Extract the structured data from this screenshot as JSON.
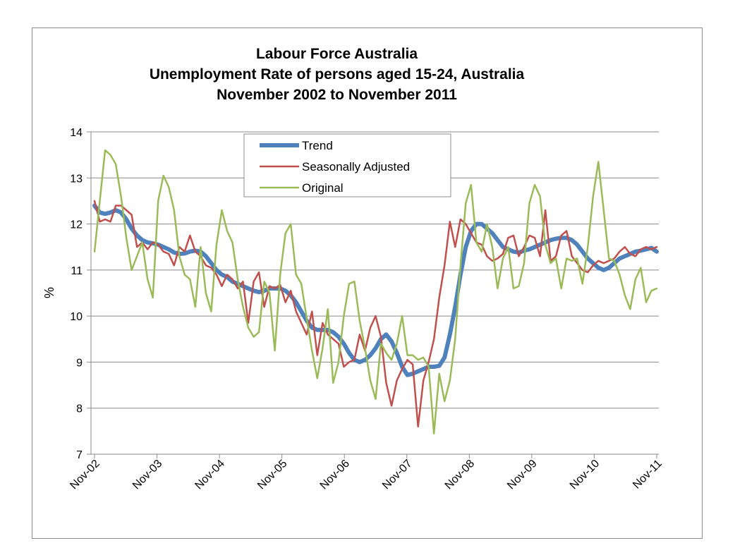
{
  "chart_data": {
    "type": "line",
    "title_lines": [
      "Labour Force Australia",
      "Unemployment Rate of persons  aged 15-24,  Australia",
      "November 2002 to November 2011"
    ],
    "xlabel": "",
    "ylabel": "%",
    "ylim": [
      7,
      14
    ],
    "yticks": [
      7,
      8,
      9,
      10,
      11,
      12,
      13,
      14
    ],
    "x_tick_labels": [
      "Nov-02",
      "Nov-03",
      "Nov-04",
      "Nov-05",
      "Nov-06",
      "Nov-07",
      "Nov-08",
      "Nov-09",
      "Nov-10",
      "Nov-11"
    ],
    "x_start": "Nov-02",
    "x_end": "Nov-11",
    "grid": "horizontal",
    "legend_position": "top-center",
    "series": [
      {
        "name": "Trend",
        "color": "#4f81bd",
        "values": [
          12.4,
          12.25,
          12.22,
          12.25,
          12.3,
          12.25,
          12.1,
          11.9,
          11.75,
          11.65,
          11.6,
          11.58,
          11.55,
          11.5,
          11.45,
          11.38,
          11.35,
          11.36,
          11.4,
          11.42,
          11.4,
          11.3,
          11.15,
          11.0,
          10.9,
          10.85,
          10.75,
          10.7,
          10.65,
          10.6,
          10.55,
          10.52,
          10.55,
          10.6,
          10.6,
          10.6,
          10.55,
          10.45,
          10.3,
          10.1,
          9.9,
          9.75,
          9.7,
          9.7,
          9.7,
          9.65,
          9.55,
          9.4,
          9.2,
          9.05,
          9.0,
          9.05,
          9.15,
          9.3,
          9.5,
          9.6,
          9.45,
          9.2,
          8.9,
          8.72,
          8.75,
          8.8,
          8.85,
          8.9,
          8.9,
          8.92,
          9.1,
          9.6,
          10.2,
          10.9,
          11.5,
          11.85,
          12.0,
          12.0,
          11.9,
          11.8,
          11.65,
          11.5,
          11.45,
          11.4,
          11.38,
          11.42,
          11.45,
          11.5,
          11.55,
          11.6,
          11.65,
          11.68,
          11.7,
          11.7,
          11.65,
          11.55,
          11.4,
          11.25,
          11.15,
          11.05,
          11.0,
          11.05,
          11.15,
          11.25,
          11.3,
          11.35,
          11.4,
          11.42,
          11.45,
          11.48,
          11.4
        ]
      },
      {
        "name": "Seasonally Adjusted",
        "color": "#c0504d",
        "values": [
          12.5,
          12.05,
          12.1,
          12.05,
          12.4,
          12.4,
          12.3,
          12.2,
          11.5,
          11.6,
          11.45,
          11.6,
          11.55,
          11.4,
          11.35,
          11.1,
          11.5,
          11.4,
          11.75,
          11.4,
          11.3,
          11.1,
          11.05,
          10.9,
          10.65,
          10.9,
          10.8,
          10.6,
          10.75,
          9.85,
          10.75,
          10.95,
          10.2,
          10.65,
          10.6,
          10.68,
          10.3,
          10.55,
          10.1,
          9.85,
          9.6,
          10.1,
          9.15,
          9.85,
          9.6,
          9.5,
          9.4,
          8.9,
          9.0,
          9.05,
          9.6,
          9.25,
          9.75,
          10.0,
          9.55,
          8.55,
          8.05,
          8.6,
          8.85,
          9.05,
          8.95,
          7.6,
          8.6,
          9.0,
          9.5,
          10.4,
          11.1,
          12.05,
          11.5,
          12.1,
          12.0,
          11.8,
          11.6,
          11.55,
          11.3,
          11.2,
          11.25,
          11.35,
          11.7,
          11.75,
          11.3,
          11.5,
          11.75,
          11.7,
          11.3,
          12.3,
          11.2,
          11.3,
          11.75,
          11.85,
          11.3,
          11.15,
          11.0,
          10.95,
          11.1,
          11.2,
          11.15,
          11.2,
          11.25,
          11.4,
          11.5,
          11.35,
          11.3,
          11.45,
          11.5,
          11.45,
          11.5
        ]
      },
      {
        "name": "Original",
        "color": "#9bbb59",
        "values": [
          11.4,
          12.5,
          13.6,
          13.5,
          13.3,
          12.6,
          11.7,
          11.0,
          11.3,
          11.6,
          10.8,
          10.4,
          12.5,
          13.05,
          12.8,
          12.3,
          11.3,
          10.9,
          10.8,
          10.2,
          11.5,
          10.5,
          10.1,
          11.55,
          12.3,
          11.85,
          11.6,
          10.8,
          10.2,
          9.75,
          9.55,
          9.65,
          10.75,
          10.5,
          9.25,
          10.9,
          11.8,
          12.0,
          10.9,
          10.7,
          9.95,
          9.25,
          8.65,
          9.3,
          10.15,
          8.55,
          9.0,
          10.0,
          10.7,
          10.75,
          9.9,
          9.3,
          8.6,
          8.2,
          9.4,
          9.2,
          9.05,
          9.4,
          10.0,
          9.15,
          9.15,
          9.05,
          9.1,
          8.9,
          7.45,
          8.75,
          8.15,
          8.6,
          9.5,
          11.1,
          12.45,
          12.85,
          11.6,
          11.4,
          12.0,
          11.5,
          10.6,
          11.25,
          11.5,
          10.6,
          10.65,
          11.15,
          12.45,
          12.85,
          12.6,
          11.55,
          11.15,
          11.25,
          10.6,
          11.25,
          11.2,
          11.25,
          10.7,
          11.5,
          12.6,
          13.35,
          12.3,
          11.25,
          11.2,
          10.9,
          10.45,
          10.15,
          10.8,
          11.05,
          10.3,
          10.55,
          10.6
        ]
      }
    ]
  }
}
